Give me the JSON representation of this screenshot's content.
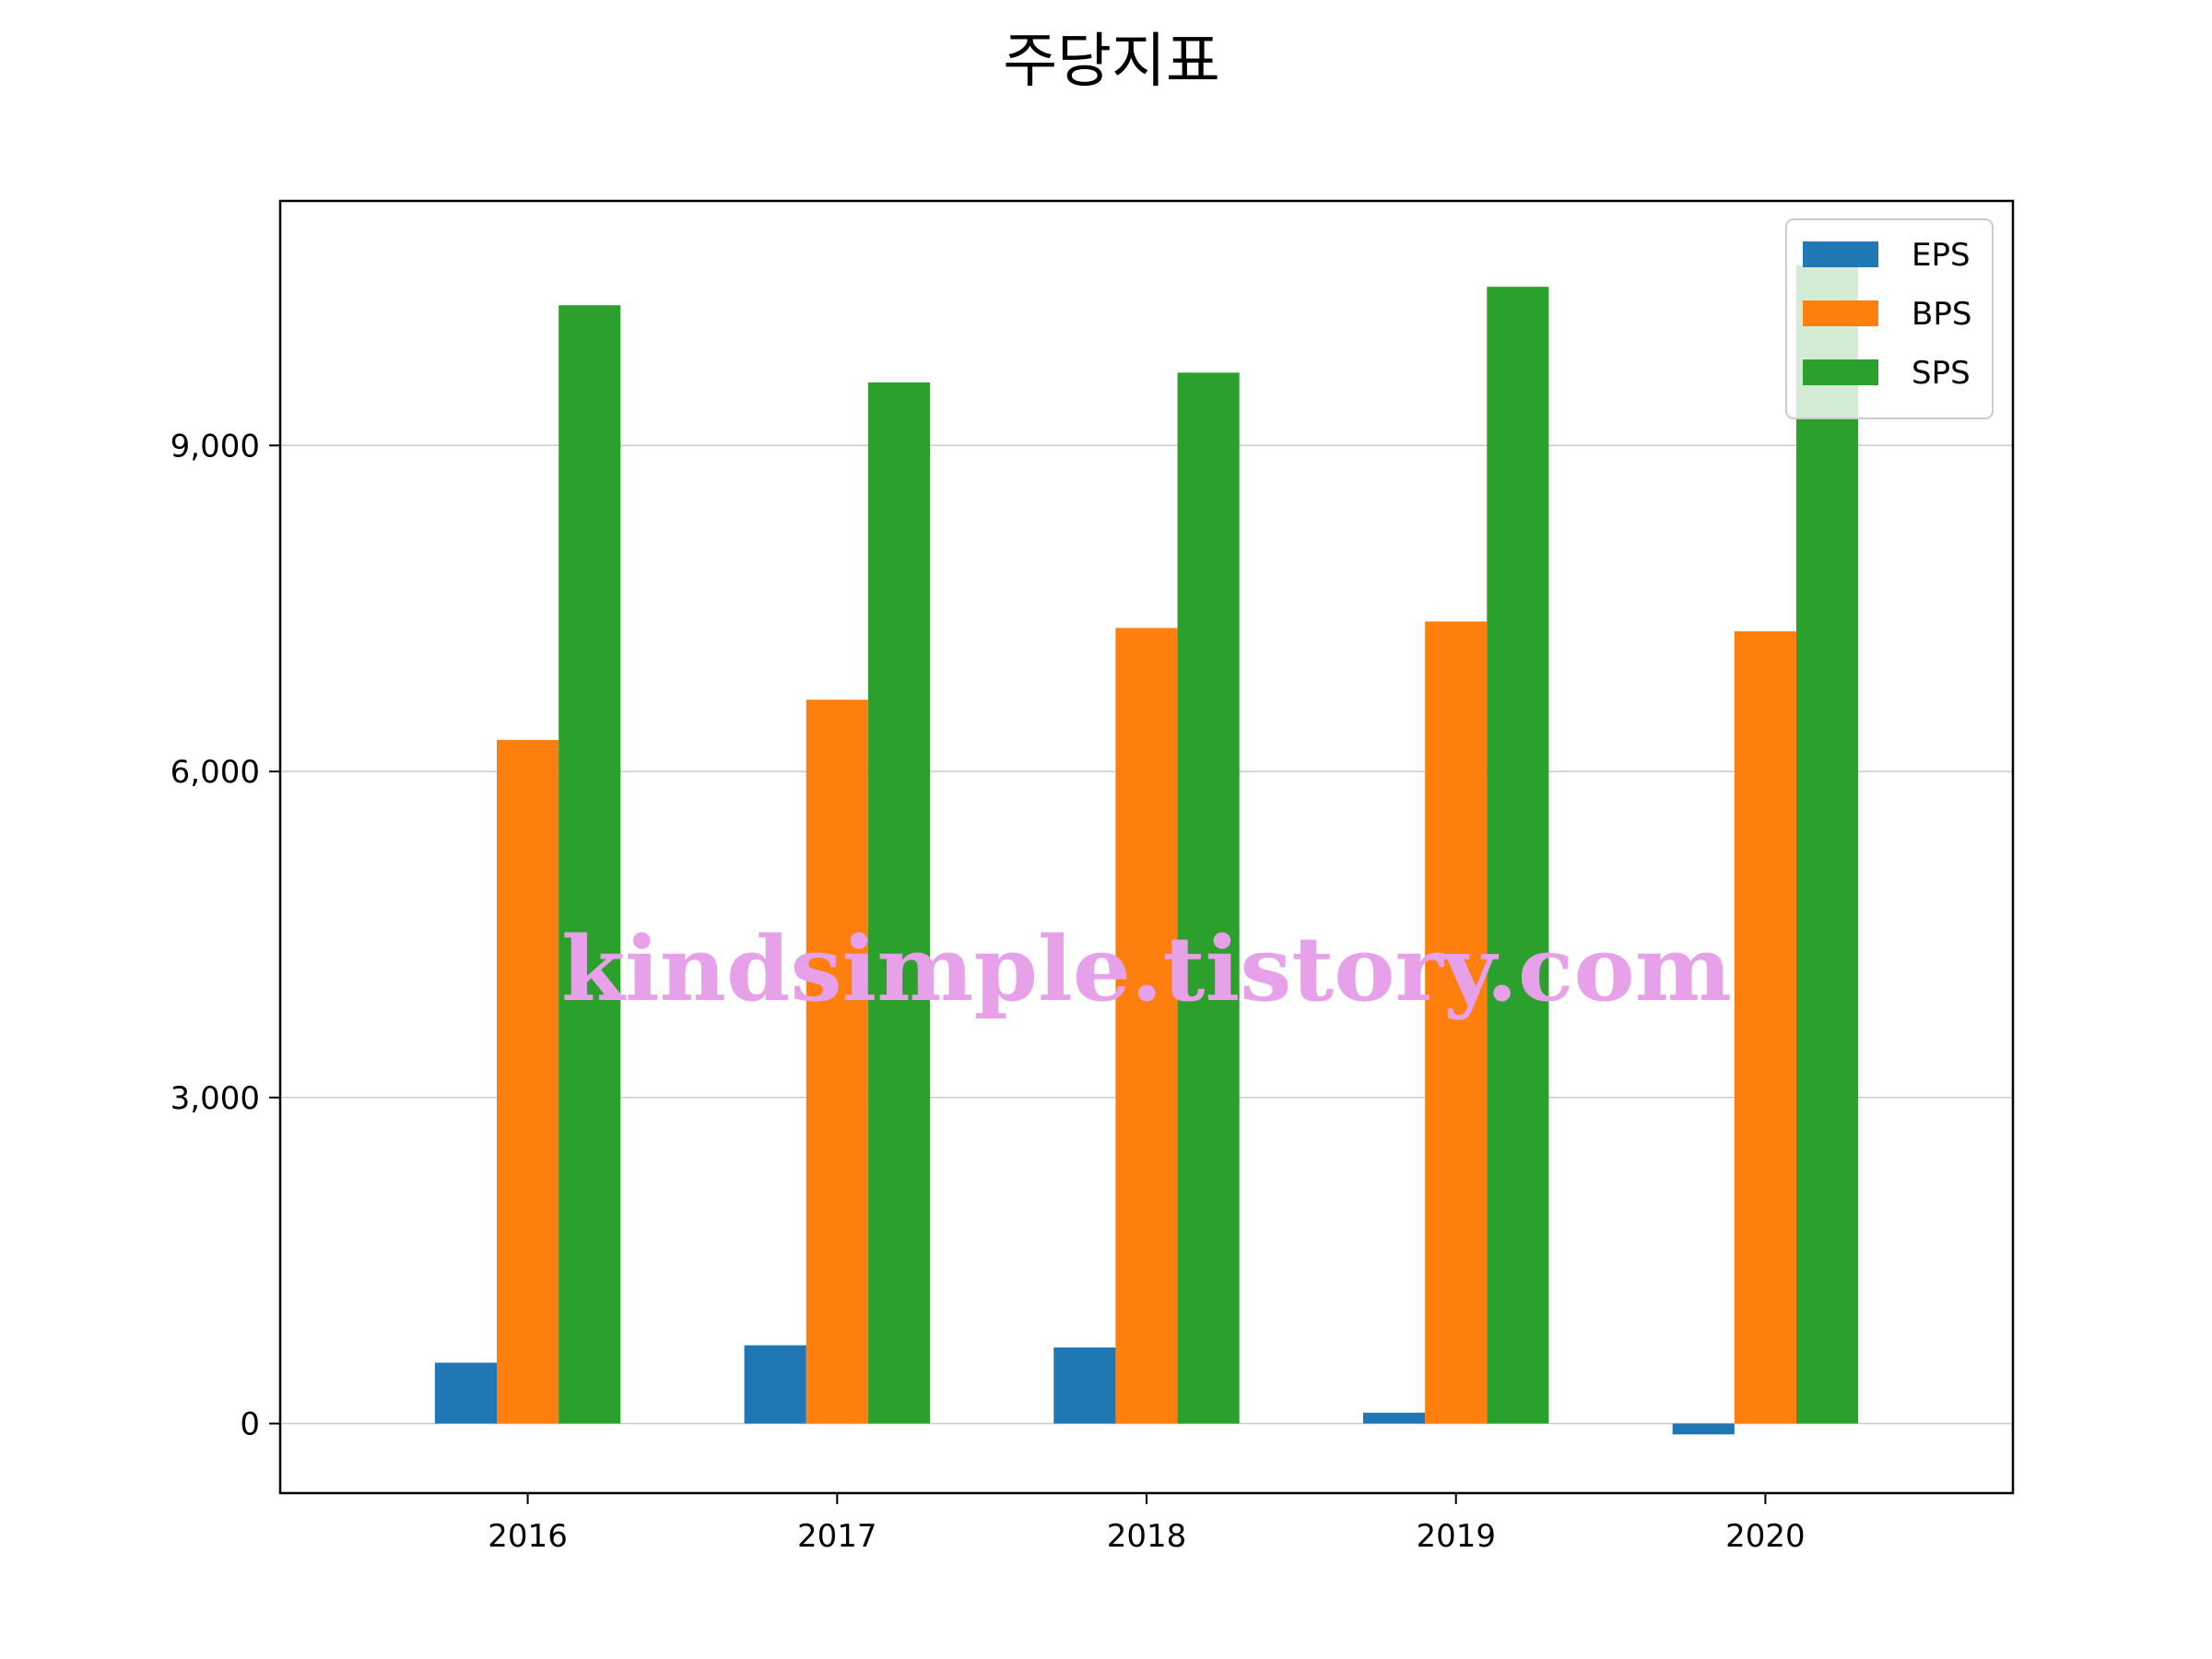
{
  "chart_data": {
    "type": "bar",
    "title": "주당지표",
    "xlabel": "",
    "ylabel": "",
    "categories": [
      "2016",
      "2017",
      "2018",
      "2019",
      "2020"
    ],
    "series": [
      {
        "name": "EPS",
        "color": "#1f77b4",
        "values": [
          560,
          720,
          700,
          100,
          -100
        ]
      },
      {
        "name": "BPS",
        "color": "#ff7f0e",
        "values": [
          6290,
          6660,
          7320,
          7380,
          7290
        ]
      },
      {
        "name": "SPS",
        "color": "#2ca02c",
        "values": [
          10290,
          9580,
          9670,
          10460,
          10660
        ]
      }
    ],
    "ylim": [
      -640,
      11250
    ],
    "yticks": [
      0,
      3000,
      6000,
      9000
    ],
    "ytick_labels": [
      "0",
      "3,000",
      "6,000",
      "9,000"
    ],
    "grid": "y",
    "legend_position": "top-right"
  },
  "watermark": {
    "text": "kindsimple.tistory.com",
    "color": "#e6a1e8"
  }
}
